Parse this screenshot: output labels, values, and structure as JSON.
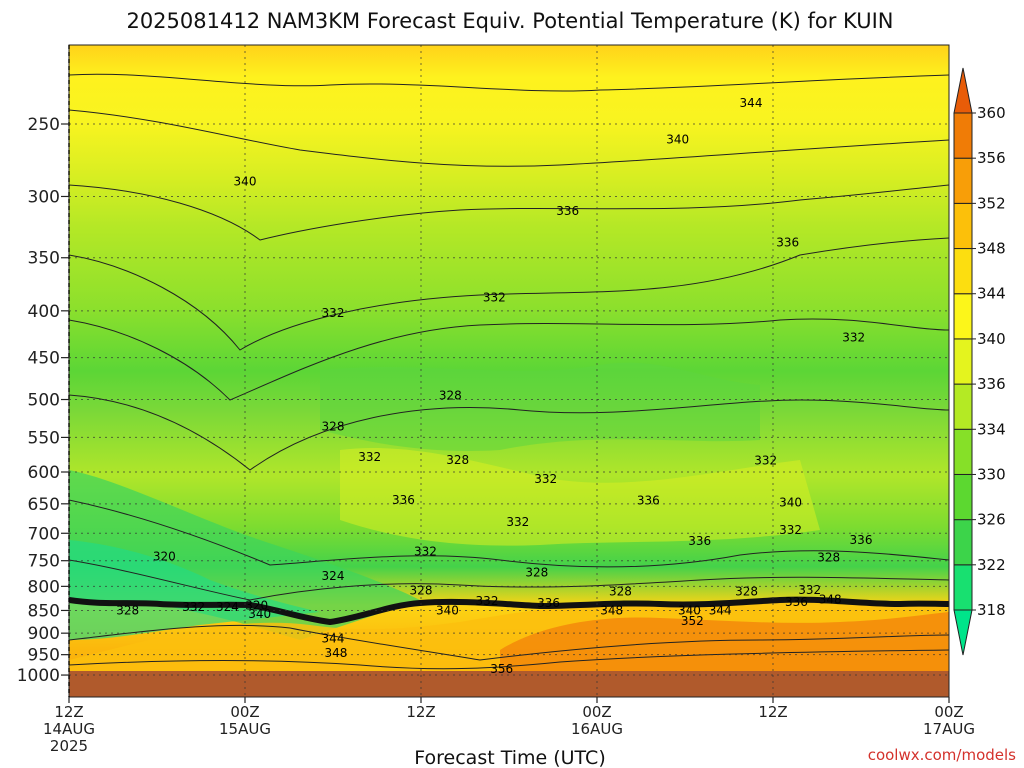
{
  "chart_data": {
    "type": "heatmap",
    "title": "2025081412 NAM3KM Forecast Equiv. Potential Temperature (K) for KUIN",
    "xlabel": "Forecast Time (UTC)",
    "ylabel": "",
    "y_scale": "log",
    "y_inverted": true,
    "ylim": [
      200,
      1050
    ],
    "y_ticks": [
      250,
      300,
      350,
      400,
      450,
      500,
      550,
      600,
      650,
      700,
      750,
      800,
      850,
      900,
      950,
      1000
    ],
    "x_ticks": [
      {
        "line1": "12Z",
        "line2": "14AUG",
        "line3": "2025"
      },
      {
        "line1": "00Z",
        "line2": "15AUG",
        "line3": ""
      },
      {
        "line1": "12Z",
        "line2": "",
        "line3": ""
      },
      {
        "line1": "00Z",
        "line2": "16AUG",
        "line3": ""
      },
      {
        "line1": "12Z",
        "line2": "",
        "line3": ""
      },
      {
        "line1": "00Z",
        "line2": "17AUG",
        "line3": ""
      }
    ],
    "xlim_hours": [
      0,
      60
    ],
    "grid": true,
    "colorbar": {
      "labels": [
        318,
        322,
        326,
        330,
        334,
        336,
        340,
        344,
        348,
        352,
        356,
        360
      ],
      "colors": [
        "#00e58a",
        "#18e070",
        "#3cd44a",
        "#5cd830",
        "#86e028",
        "#b4ea24",
        "#e4f41e",
        "#fcf61a",
        "#fcde10",
        "#fcc00a",
        "#f89e08",
        "#f07c06",
        "#e85c08"
      ],
      "position": "right"
    },
    "contour_labels": [
      {
        "t": 46.5,
        "p": 237,
        "v": "344"
      },
      {
        "t": 41.5,
        "p": 260,
        "v": "340"
      },
      {
        "t": 12.0,
        "p": 289,
        "v": "340"
      },
      {
        "t": 34.0,
        "p": 311,
        "v": "336"
      },
      {
        "t": 49.0,
        "p": 337,
        "v": "336"
      },
      {
        "t": 29.0,
        "p": 387,
        "v": "332"
      },
      {
        "t": 18.0,
        "p": 402,
        "v": "332"
      },
      {
        "t": 53.5,
        "p": 428,
        "v": "332"
      },
      {
        "t": 26.0,
        "p": 495,
        "v": "328"
      },
      {
        "t": 18.0,
        "p": 535,
        "v": "328"
      },
      {
        "t": 20.5,
        "p": 578,
        "v": "332"
      },
      {
        "t": 26.5,
        "p": 582,
        "v": "328"
      },
      {
        "t": 47.5,
        "p": 583,
        "v": "332"
      },
      {
        "t": 32.5,
        "p": 611,
        "v": "332"
      },
      {
        "t": 22.8,
        "p": 644,
        "v": "336"
      },
      {
        "t": 39.5,
        "p": 645,
        "v": "336"
      },
      {
        "t": 49.2,
        "p": 648,
        "v": "340"
      },
      {
        "t": 30.6,
        "p": 680,
        "v": "332"
      },
      {
        "t": 49.2,
        "p": 694,
        "v": "332"
      },
      {
        "t": 54.0,
        "p": 712,
        "v": "336"
      },
      {
        "t": 43.0,
        "p": 714,
        "v": "336"
      },
      {
        "t": 24.3,
        "p": 733,
        "v": "332"
      },
      {
        "t": 6.5,
        "p": 742,
        "v": "320"
      },
      {
        "t": 51.8,
        "p": 744,
        "v": "328"
      },
      {
        "t": 31.9,
        "p": 773,
        "v": "328"
      },
      {
        "t": 18.0,
        "p": 779,
        "v": "324"
      },
      {
        "t": 24.0,
        "p": 808,
        "v": "328"
      },
      {
        "t": 37.6,
        "p": 810,
        "v": "328"
      },
      {
        "t": 46.2,
        "p": 810,
        "v": "328"
      },
      {
        "t": 50.5,
        "p": 807,
        "v": "332"
      },
      {
        "t": 28.5,
        "p": 830,
        "v": "332"
      },
      {
        "t": 32.7,
        "p": 834,
        "v": "336"
      },
      {
        "t": 49.6,
        "p": 832,
        "v": "336"
      },
      {
        "t": 51.9,
        "p": 827,
        "v": "348"
      },
      {
        "t": 8.5,
        "p": 843,
        "v": "332"
      },
      {
        "t": 10.8,
        "p": 843,
        "v": "324"
      },
      {
        "t": 12.8,
        "p": 840,
        "v": "320"
      },
      {
        "t": 4.0,
        "p": 850,
        "v": "328"
      },
      {
        "t": 25.8,
        "p": 850,
        "v": "340"
      },
      {
        "t": 37.0,
        "p": 850,
        "v": "348"
      },
      {
        "t": 42.3,
        "p": 850,
        "v": "340"
      },
      {
        "t": 44.4,
        "p": 850,
        "v": "344"
      },
      {
        "t": 13.0,
        "p": 858,
        "v": "340"
      },
      {
        "t": 42.5,
        "p": 873,
        "v": "352"
      },
      {
        "t": 18.0,
        "p": 912,
        "v": "344"
      },
      {
        "t": 18.2,
        "p": 946,
        "v": "348"
      },
      {
        "t": 29.5,
        "p": 985,
        "v": "356"
      }
    ]
  },
  "credit": "coolwx.com/models"
}
